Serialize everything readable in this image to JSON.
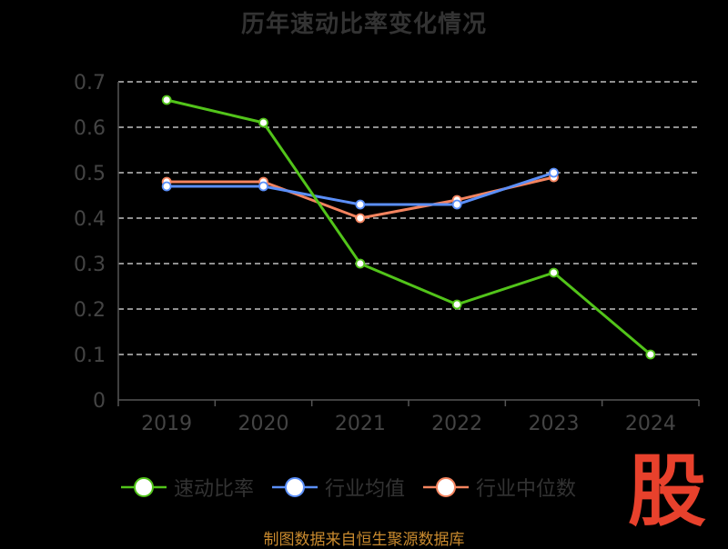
{
  "title": "历年速动比率变化情况",
  "footer": "制图数据来自恒生聚源数据库",
  "logo_text": "股",
  "colors": {
    "axis": "#555555",
    "grid": "#e6e6e6",
    "tick_text": "#444444",
    "logo": "#e8412c",
    "footer": "#c98a2e"
  },
  "chart_data": {
    "type": "line",
    "title": "历年速动比率变化情况",
    "categories": [
      "2019",
      "2020",
      "2021",
      "2022",
      "2023",
      "2024"
    ],
    "y_ticks": [
      "0",
      "0.1",
      "0.2",
      "0.3",
      "0.4",
      "0.5",
      "0.6",
      "0.7"
    ],
    "ylim": [
      0,
      0.7
    ],
    "grid": true,
    "legend_position": "bottom",
    "series": [
      {
        "name": "速动比率",
        "color": "#52c41a",
        "values": [
          0.66,
          0.61,
          0.3,
          0.21,
          0.28,
          0.1
        ]
      },
      {
        "name": "行业均值",
        "color": "#5b8ff9",
        "values": [
          0.47,
          0.47,
          0.43,
          0.43,
          0.5,
          null
        ]
      },
      {
        "name": "行业中位数",
        "color": "#f4845f",
        "values": [
          0.48,
          0.48,
          0.4,
          0.44,
          0.49,
          null
        ]
      }
    ]
  }
}
